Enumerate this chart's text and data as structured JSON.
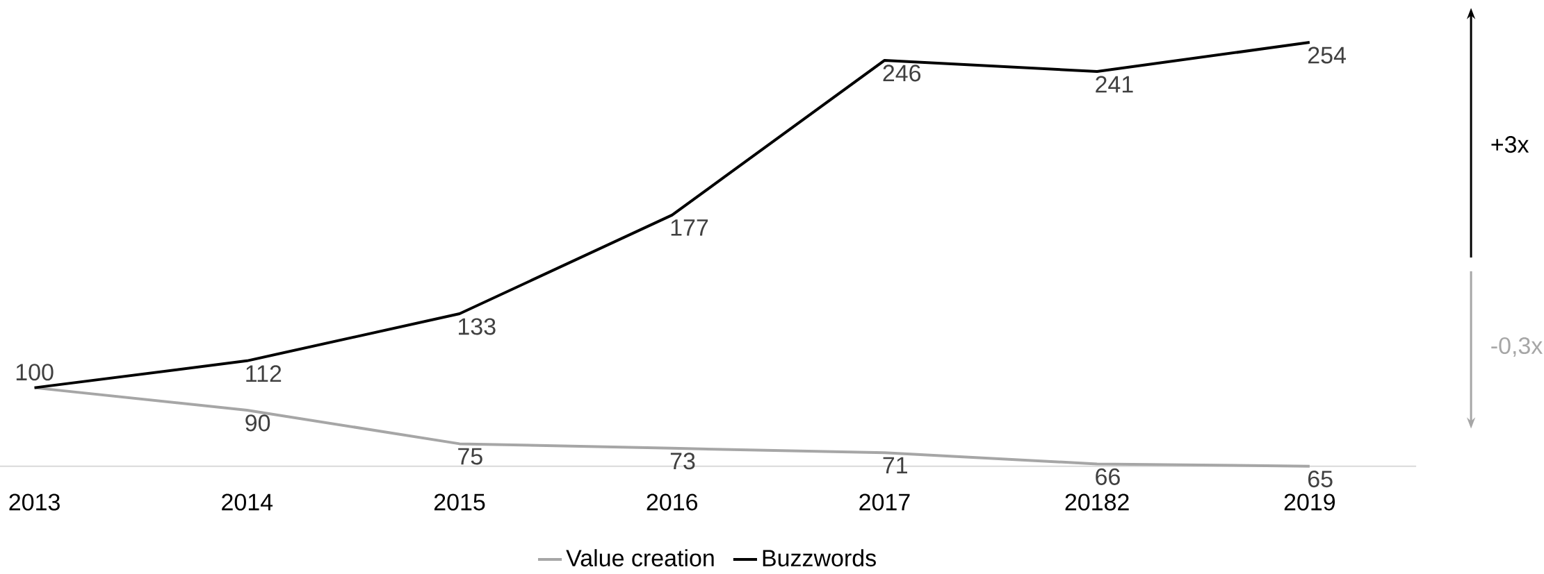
{
  "chart_data": {
    "type": "line",
    "categories": [
      "2013",
      "2014",
      "2015",
      "2016",
      "2017",
      "20182",
      "2019"
    ],
    "series": [
      {
        "name": "Value creation",
        "color": "#a6a6a6",
        "values": [
          100,
          90,
          75,
          73,
          71,
          66,
          65
        ],
        "value_labels": [
          null,
          "90",
          "75",
          "73",
          "71",
          "66",
          "65"
        ]
      },
      {
        "name": "Buzzwords",
        "color": "#000000",
        "values": [
          100,
          112,
          133,
          177,
          246,
          241,
          254
        ],
        "value_labels": [
          "100",
          "112",
          "133",
          "177",
          "246",
          "241",
          "254"
        ]
      }
    ],
    "legend": "bottom",
    "grid": false,
    "marker": "none",
    "line_style": "solid",
    "annotations": [
      "+3x",
      "-0,3x"
    ]
  }
}
